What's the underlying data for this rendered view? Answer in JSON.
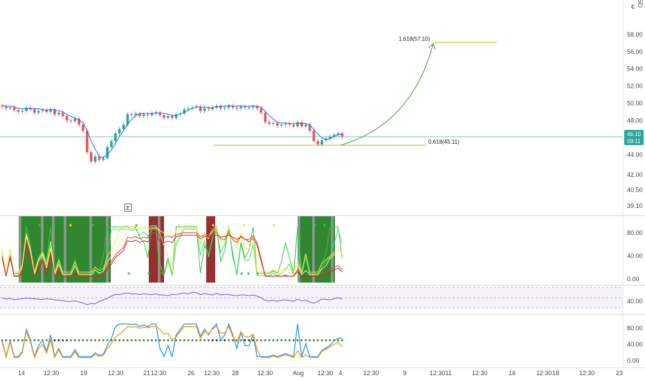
{
  "currency_label": "USD",
  "currency_symbol": "€",
  "earnings_marker": "E",
  "colors": {
    "up": "#26a69a",
    "down": "#ef5350",
    "level": "#c9c21a",
    "arrow": "#3a9a3a",
    "current_price_line": "#26a69a",
    "rsi": "#7e57c2",
    "macd_fast": "#2196f3",
    "macd_slow": "#ff9800"
  },
  "chart_data": [
    {
      "type": "candlestick",
      "panel": "price",
      "x_ticks": [
        "14",
        "12:30",
        "19",
        "12:30",
        "21",
        "12:30",
        "26",
        "12:30",
        "28",
        "12:30",
        "Aug",
        "12:30",
        "4",
        "12:30",
        "9",
        "12:30",
        "11",
        "12:30",
        "16",
        "12:30",
        "18",
        "12:30",
        "23"
      ],
      "y_ticks": [
        "58.00",
        "56.00",
        "54.00",
        "52.00",
        "50.00",
        "48.00",
        "44.00",
        "42.00",
        "40.50",
        "39.10"
      ],
      "y_ticks_values": [
        58.0,
        56.0,
        54.0,
        52.0,
        50.0,
        48.0,
        44.0,
        42.0,
        40.5,
        39.1
      ],
      "price_labels": {
        "current": "46.10",
        "countdown": "09:11"
      },
      "fib_levels": [
        {
          "label": "1.618(57.10)",
          "value": 57.1
        },
        {
          "label": "0.618(45.11)",
          "value": 45.11
        }
      ],
      "close": [
        49.6,
        49.4,
        49.5,
        49.2,
        49.0,
        49.1,
        49.5,
        49.3,
        48.9,
        49.1,
        49.2,
        49.0,
        49.3,
        48.7,
        48.9,
        48.5,
        48.0,
        47.9,
        48.2,
        47.5,
        46.8,
        44.3,
        43.2,
        43.8,
        43.4,
        43.6,
        44.9,
        45.6,
        46.5,
        47.0,
        47.5,
        48.7,
        48.6,
        48.8,
        48.5,
        48.7,
        48.6,
        48.8,
        48.9,
        48.6,
        48.3,
        48.5,
        48.3,
        48.7,
        48.8,
        49.3,
        49.4,
        49.5,
        49.6,
        49.1,
        49.4,
        49.3,
        49.5,
        49.7,
        49.4,
        49.5,
        49.7,
        49.5,
        49.4,
        49.6,
        49.5,
        49.5,
        49.6,
        49.4,
        48.9,
        47.8,
        47.6,
        47.7,
        47.4,
        47.5,
        47.6,
        47.5,
        47.3,
        47.8,
        47.3,
        47.5,
        46.8,
        45.6,
        45.2,
        45.7,
        45.9,
        46.1,
        46.3,
        46.5,
        46.1
      ]
    },
    {
      "type": "line",
      "panel": "oscillator",
      "y_ticks": [
        "80.00",
        "40.00",
        "0.00"
      ],
      "y_ticks_values": [
        80,
        40,
        0
      ],
      "ylim": [
        0,
        100
      ]
    },
    {
      "type": "line",
      "panel": "rsi",
      "y_ticks": [
        "40.00"
      ],
      "y_ticks_values": [
        40
      ],
      "ylim": [
        20,
        80
      ],
      "values": [
        48,
        44,
        46,
        42,
        44,
        45,
        47,
        46,
        45,
        44,
        43,
        45,
        44,
        42,
        41,
        40,
        37,
        38,
        39,
        36,
        33,
        28,
        32,
        30,
        38,
        42,
        46,
        53,
        58,
        57,
        60,
        62,
        59,
        60,
        57,
        60,
        58,
        57,
        60,
        56,
        56,
        54,
        58,
        57,
        60,
        62,
        59,
        64,
        63,
        57,
        60,
        58,
        56,
        61,
        56,
        58,
        57,
        55,
        54,
        56,
        56,
        54,
        56,
        53,
        48,
        40,
        39,
        41,
        38,
        41,
        42,
        40,
        38,
        44,
        39,
        41,
        36,
        32,
        38,
        44,
        43,
        42,
        45,
        49,
        44
      ]
    },
    {
      "type": "line",
      "panel": "macd",
      "y_ticks": [
        "80.00",
        "40.00",
        "0.00"
      ],
      "y_ticks_values": [
        80,
        40,
        0
      ],
      "ylim": [
        -5,
        100
      ]
    }
  ]
}
